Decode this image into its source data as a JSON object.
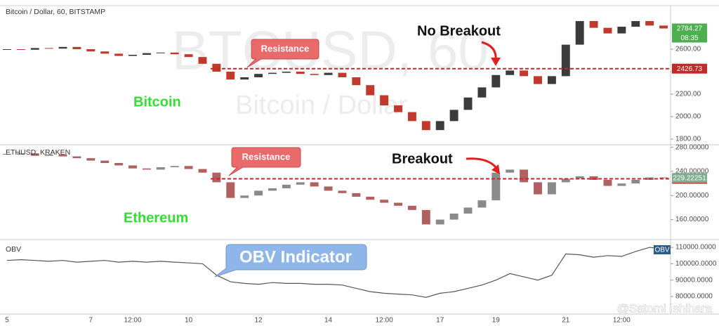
{
  "chart_data": [
    {
      "type": "candlestick",
      "title": "Bitcoin / Dollar, 60, BITSTAMP",
      "watermark": [
        "BTCUSD, 60",
        "Bitcoin / Dollar"
      ],
      "annotations": [
        "Resistance",
        "No Breakout",
        "Bitcoin"
      ],
      "open": [
        2595,
        2600,
        2595,
        2610,
        2605,
        2620,
        2600,
        2580,
        2560,
        2540,
        2550,
        2565,
        2570,
        2555,
        2530,
        2470,
        2400,
        2330,
        2350,
        2380,
        2390,
        2400,
        2380,
        2370,
        2390,
        2350,
        2280,
        2190,
        2100,
        2040,
        1960,
        1880,
        1960,
        2060,
        2170,
        2260,
        2370,
        2410,
        2360,
        2290,
        2360,
        2640,
        2850,
        2790,
        2740,
        2800,
        2850,
        2810
      ],
      "close": [
        2600,
        2595,
        2610,
        2605,
        2620,
        2600,
        2580,
        2560,
        2540,
        2550,
        2565,
        2570,
        2555,
        2530,
        2470,
        2400,
        2330,
        2350,
        2380,
        2390,
        2400,
        2380,
        2370,
        2390,
        2350,
        2280,
        2190,
        2100,
        2040,
        1960,
        1880,
        1960,
        2060,
        2170,
        2260,
        2370,
        2410,
        2360,
        2290,
        2360,
        2640,
        2850,
        2790,
        2740,
        2800,
        2850,
        2810,
        2784.27
      ],
      "up_color": "#3b3b3b",
      "down_color": "#c0392b",
      "ylim": [
        1756,
        2975
      ],
      "yticks": [
        {
          "value": 1800,
          "label": "1800.00"
        },
        {
          "value": 2000,
          "label": "2000.00"
        },
        {
          "value": 2200,
          "label": "2200.00"
        },
        {
          "value": 2400,
          "label": "2400.00"
        },
        {
          "value": 2600,
          "label": "2600.00"
        }
      ],
      "resistance": 2426.73,
      "resistance_color": "#c62828",
      "last_color": "#4caf50",
      "countdown": "08:35"
    },
    {
      "type": "candlestick",
      "title": "ETHUSD, KRAKEN",
      "annotations": [
        "Resistance",
        "Breakout",
        "Ethereum"
      ],
      "open": [
        269,
        268,
        270,
        266,
        268,
        265,
        262,
        258,
        254,
        250,
        245,
        243,
        247,
        249,
        244,
        238,
        222,
        196,
        200,
        208,
        212,
        218,
        222,
        215,
        208,
        204,
        198,
        193,
        188,
        183,
        176,
        152,
        160,
        170,
        180,
        192,
        238,
        243,
        222,
        202,
        222,
        228,
        232,
        226,
        216,
        220,
        226,
        230
      ],
      "close": [
        268,
        270,
        266,
        268,
        265,
        262,
        258,
        254,
        250,
        245,
        243,
        247,
        249,
        244,
        238,
        222,
        196,
        200,
        208,
        212,
        218,
        222,
        215,
        208,
        204,
        198,
        193,
        188,
        183,
        176,
        152,
        160,
        170,
        180,
        192,
        238,
        243,
        222,
        202,
        222,
        228,
        232,
        226,
        216,
        220,
        226,
        230,
        229.22251
      ],
      "up_color": "#8a8a8a",
      "down_color": "#b06060",
      "ylim": [
        128,
        282
      ],
      "yticks": [
        {
          "value": 160,
          "label": "160.00000"
        },
        {
          "value": 200,
          "label": "200.00000"
        },
        {
          "value": 240,
          "label": "240.00000"
        },
        {
          "value": 280,
          "label": "280.00000"
        }
      ],
      "resistance": 227.70783,
      "resistance_color": "#c62828",
      "last_color": "#7fae8f"
    },
    {
      "type": "line",
      "title": "OBV",
      "annotations": [
        "OBV Indicator"
      ],
      "categories": [
        "5",
        null,
        null,
        null,
        null,
        null,
        "7",
        null,
        null,
        "12:00",
        null,
        null,
        null,
        "10",
        null,
        null,
        null,
        null,
        "12",
        null,
        null,
        null,
        null,
        "14",
        null,
        null,
        null,
        "12:00",
        null,
        null,
        null,
        "17",
        null,
        null,
        null,
        "19",
        null,
        null,
        null,
        null,
        "21",
        null,
        null,
        null,
        "12:00",
        null,
        null,
        null
      ],
      "values": [
        102000,
        102500,
        102000,
        101500,
        102000,
        101000,
        101500,
        102000,
        101000,
        101500,
        101000,
        101500,
        101000,
        100500,
        100000,
        93000,
        89000,
        88000,
        87500,
        88500,
        88000,
        88000,
        87500,
        87500,
        87000,
        85000,
        83000,
        82000,
        81500,
        81000,
        79500,
        82000,
        83000,
        85000,
        87000,
        90000,
        94000,
        92000,
        90000,
        93000,
        106000,
        105500,
        104000,
        105000,
        104500,
        107500,
        110000,
        109000
      ],
      "color": "#555555",
      "badge_color": "#2c5d8a",
      "ylim": [
        69300,
        113900
      ],
      "yticks": [
        {
          "value": 80000,
          "label": "80000.0000"
        },
        {
          "value": 90000,
          "label": "90000.0000"
        },
        {
          "value": 100000,
          "label": "100000.0000"
        },
        {
          "value": 110000,
          "label": "110000.0000"
        }
      ]
    }
  ],
  "credit": "@Satomi Ishihara"
}
